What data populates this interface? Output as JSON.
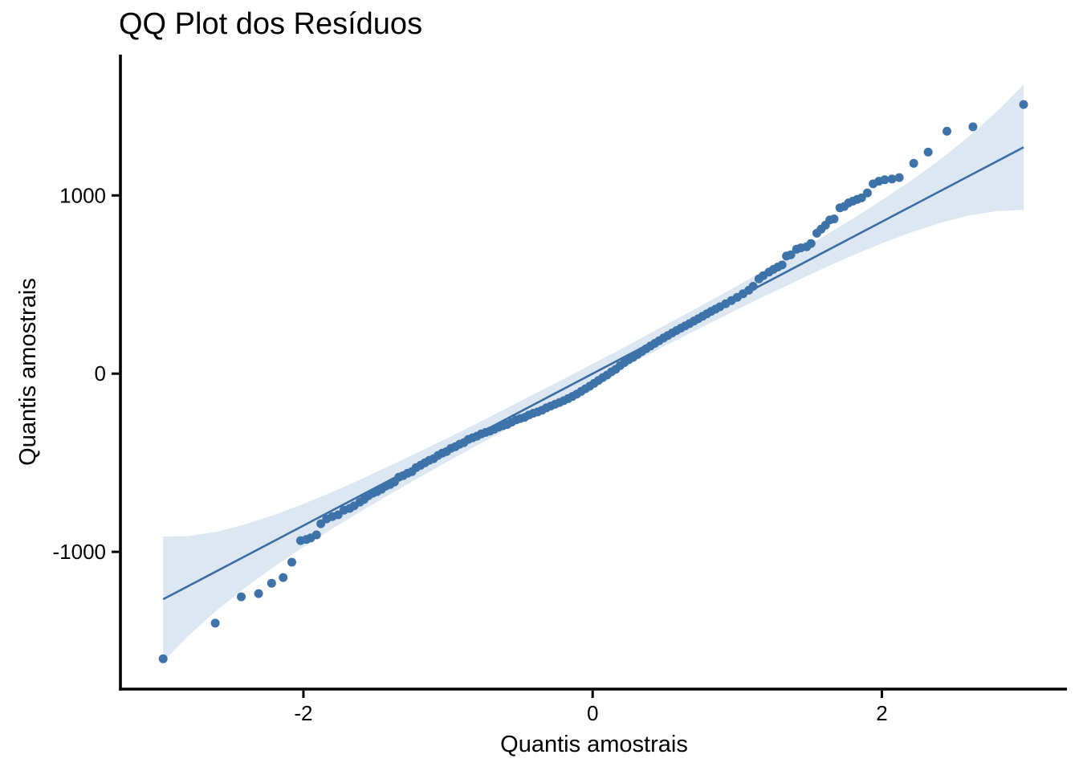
{
  "chart_data": {
    "type": "scatter",
    "subtype": "qq-plot-with-confidence-band",
    "title": "QQ Plot dos Resíduos",
    "xlabel": "Quantis amostrais",
    "ylabel": "Quantis amostrais",
    "xlim": [
      -3.26,
      3.28
    ],
    "ylim": [
      -1770,
      1790
    ],
    "x_ticks": [
      -2,
      0,
      2
    ],
    "y_ticks": [
      -1000,
      0,
      1000
    ],
    "grid": false,
    "legend": "none",
    "reference_line": {
      "x": [
        -2.97,
        2.98
      ],
      "y": [
        -1266,
        1270
      ]
    },
    "confidence_band": {
      "x": [
        -2.97,
        -2.8,
        -2.6,
        -2.4,
        -2.2,
        -2.0,
        -1.8,
        -1.6,
        -1.4,
        -1.2,
        -1.0,
        -0.8,
        -0.6,
        -0.4,
        -0.2,
        0,
        0.2,
        0.4,
        0.6,
        0.8,
        1.0,
        1.2,
        1.4,
        1.6,
        1.8,
        2.0,
        2.2,
        2.4,
        2.6,
        2.8,
        2.98
      ],
      "upper": [
        -914,
        -912,
        -887,
        -845,
        -792,
        -731,
        -664,
        -592,
        -516,
        -439,
        -360,
        -279,
        -197,
        -113,
        -30,
        55,
        140,
        227,
        315,
        403,
        492,
        583,
        676,
        772,
        870,
        973,
        1082,
        1199,
        1329,
        1474,
        1621
      ],
      "lower": [
        -1616,
        -1474,
        -1329,
        -1199,
        -1082,
        -973,
        -870,
        -772,
        -676,
        -583,
        -492,
        -403,
        -315,
        -227,
        -140,
        -55,
        30,
        113,
        197,
        279,
        360,
        439,
        516,
        592,
        664,
        731,
        792,
        845,
        887,
        912,
        919
      ]
    },
    "points": [
      [
        -2.97,
        -1600
      ],
      [
        -2.61,
        -1400
      ],
      [
        -2.43,
        -1252
      ],
      [
        -2.31,
        -1234
      ],
      [
        -2.22,
        -1176
      ],
      [
        -2.14,
        -1144
      ],
      [
        -2.08,
        -1058
      ],
      [
        -2.02,
        -937
      ],
      [
        -1.98,
        -930
      ],
      [
        -1.95,
        -922
      ],
      [
        -1.91,
        -905
      ],
      [
        -1.88,
        -842
      ],
      [
        -1.84,
        -815
      ],
      [
        -1.8,
        -802
      ],
      [
        -1.76,
        -792
      ],
      [
        -1.72,
        -766
      ],
      [
        -1.68,
        -756
      ],
      [
        -1.65,
        -742
      ],
      [
        -1.61,
        -721
      ],
      [
        -1.58,
        -706
      ],
      [
        -1.55,
        -685
      ],
      [
        -1.52,
        -671
      ],
      [
        -1.49,
        -662
      ],
      [
        -1.46,
        -649
      ],
      [
        -1.43,
        -631
      ],
      [
        -1.4,
        -622
      ],
      [
        -1.37,
        -608
      ],
      [
        -1.34,
        -581
      ],
      [
        -1.31,
        -572
      ],
      [
        -1.28,
        -559
      ],
      [
        -1.25,
        -550
      ],
      [
        -1.22,
        -527
      ],
      [
        -1.19,
        -514
      ],
      [
        -1.16,
        -500
      ],
      [
        -1.13,
        -486
      ],
      [
        -1.1,
        -477
      ],
      [
        -1.07,
        -459
      ],
      [
        -1.04,
        -446
      ],
      [
        -1.01,
        -437
      ],
      [
        -0.98,
        -419
      ],
      [
        -0.95,
        -410
      ],
      [
        -0.92,
        -396
      ],
      [
        -0.89,
        -387
      ],
      [
        -0.86,
        -369
      ],
      [
        -0.83,
        -360
      ],
      [
        -0.8,
        -351
      ],
      [
        -0.77,
        -338
      ],
      [
        -0.74,
        -330
      ],
      [
        -0.71,
        -322
      ],
      [
        -0.68,
        -312
      ],
      [
        -0.65,
        -300
      ],
      [
        -0.62,
        -292
      ],
      [
        -0.59,
        -285
      ],
      [
        -0.56,
        -272
      ],
      [
        -0.53,
        -260
      ],
      [
        -0.5,
        -252
      ],
      [
        -0.47,
        -245
      ],
      [
        -0.44,
        -232
      ],
      [
        -0.41,
        -222
      ],
      [
        -0.38,
        -215
      ],
      [
        -0.35,
        -205
      ],
      [
        -0.32,
        -192
      ],
      [
        -0.29,
        -182
      ],
      [
        -0.26,
        -172
      ],
      [
        -0.23,
        -162
      ],
      [
        -0.2,
        -152
      ],
      [
        -0.17,
        -140
      ],
      [
        -0.14,
        -128
      ],
      [
        -0.11,
        -115
      ],
      [
        -0.08,
        -100
      ],
      [
        -0.05,
        -85
      ],
      [
        -0.02,
        -70
      ],
      [
        0.01,
        -55
      ],
      [
        0.04,
        -38
      ],
      [
        0.07,
        -22
      ],
      [
        0.1,
        -8
      ],
      [
        0.13,
        10
      ],
      [
        0.16,
        25
      ],
      [
        0.19,
        45
      ],
      [
        0.22,
        62
      ],
      [
        0.25,
        78
      ],
      [
        0.28,
        92
      ],
      [
        0.31,
        108
      ],
      [
        0.34,
        124
      ],
      [
        0.37,
        140
      ],
      [
        0.4,
        155
      ],
      [
        0.43,
        170
      ],
      [
        0.46,
        185
      ],
      [
        0.49,
        200
      ],
      [
        0.52,
        214
      ],
      [
        0.55,
        228
      ],
      [
        0.58,
        242
      ],
      [
        0.61,
        255
      ],
      [
        0.64,
        268
      ],
      [
        0.67,
        281
      ],
      [
        0.7,
        295
      ],
      [
        0.73,
        308
      ],
      [
        0.76,
        322
      ],
      [
        0.79,
        336
      ],
      [
        0.82,
        350
      ],
      [
        0.85,
        362
      ],
      [
        0.88,
        375
      ],
      [
        0.92,
        392
      ],
      [
        0.96,
        410
      ],
      [
        1.0,
        428
      ],
      [
        1.04,
        448
      ],
      [
        1.08,
        468
      ],
      [
        1.11,
        490
      ],
      [
        1.15,
        532
      ],
      [
        1.18,
        550
      ],
      [
        1.22,
        570
      ],
      [
        1.25,
        585
      ],
      [
        1.28,
        598
      ],
      [
        1.31,
        610
      ],
      [
        1.34,
        660
      ],
      [
        1.37,
        667
      ],
      [
        1.41,
        698
      ],
      [
        1.44,
        706
      ],
      [
        1.48,
        712
      ],
      [
        1.51,
        730
      ],
      [
        1.55,
        788
      ],
      [
        1.58,
        811
      ],
      [
        1.61,
        833
      ],
      [
        1.64,
        862
      ],
      [
        1.67,
        868
      ],
      [
        1.71,
        930
      ],
      [
        1.74,
        938
      ],
      [
        1.77,
        958
      ],
      [
        1.8,
        968
      ],
      [
        1.83,
        978
      ],
      [
        1.86,
        986
      ],
      [
        1.9,
        1014
      ],
      [
        1.94,
        1065
      ],
      [
        1.98,
        1080
      ],
      [
        2.02,
        1088
      ],
      [
        2.07,
        1092
      ],
      [
        2.12,
        1100
      ],
      [
        2.22,
        1180
      ],
      [
        2.32,
        1243
      ],
      [
        2.45,
        1360
      ],
      [
        2.63,
        1385
      ],
      [
        2.98,
        1510
      ]
    ],
    "colors": {
      "point": "#3d73a8",
      "line": "#3c6ea5",
      "band": "#dce7f1",
      "axis": "#000000",
      "background": "#ffffff"
    }
  }
}
